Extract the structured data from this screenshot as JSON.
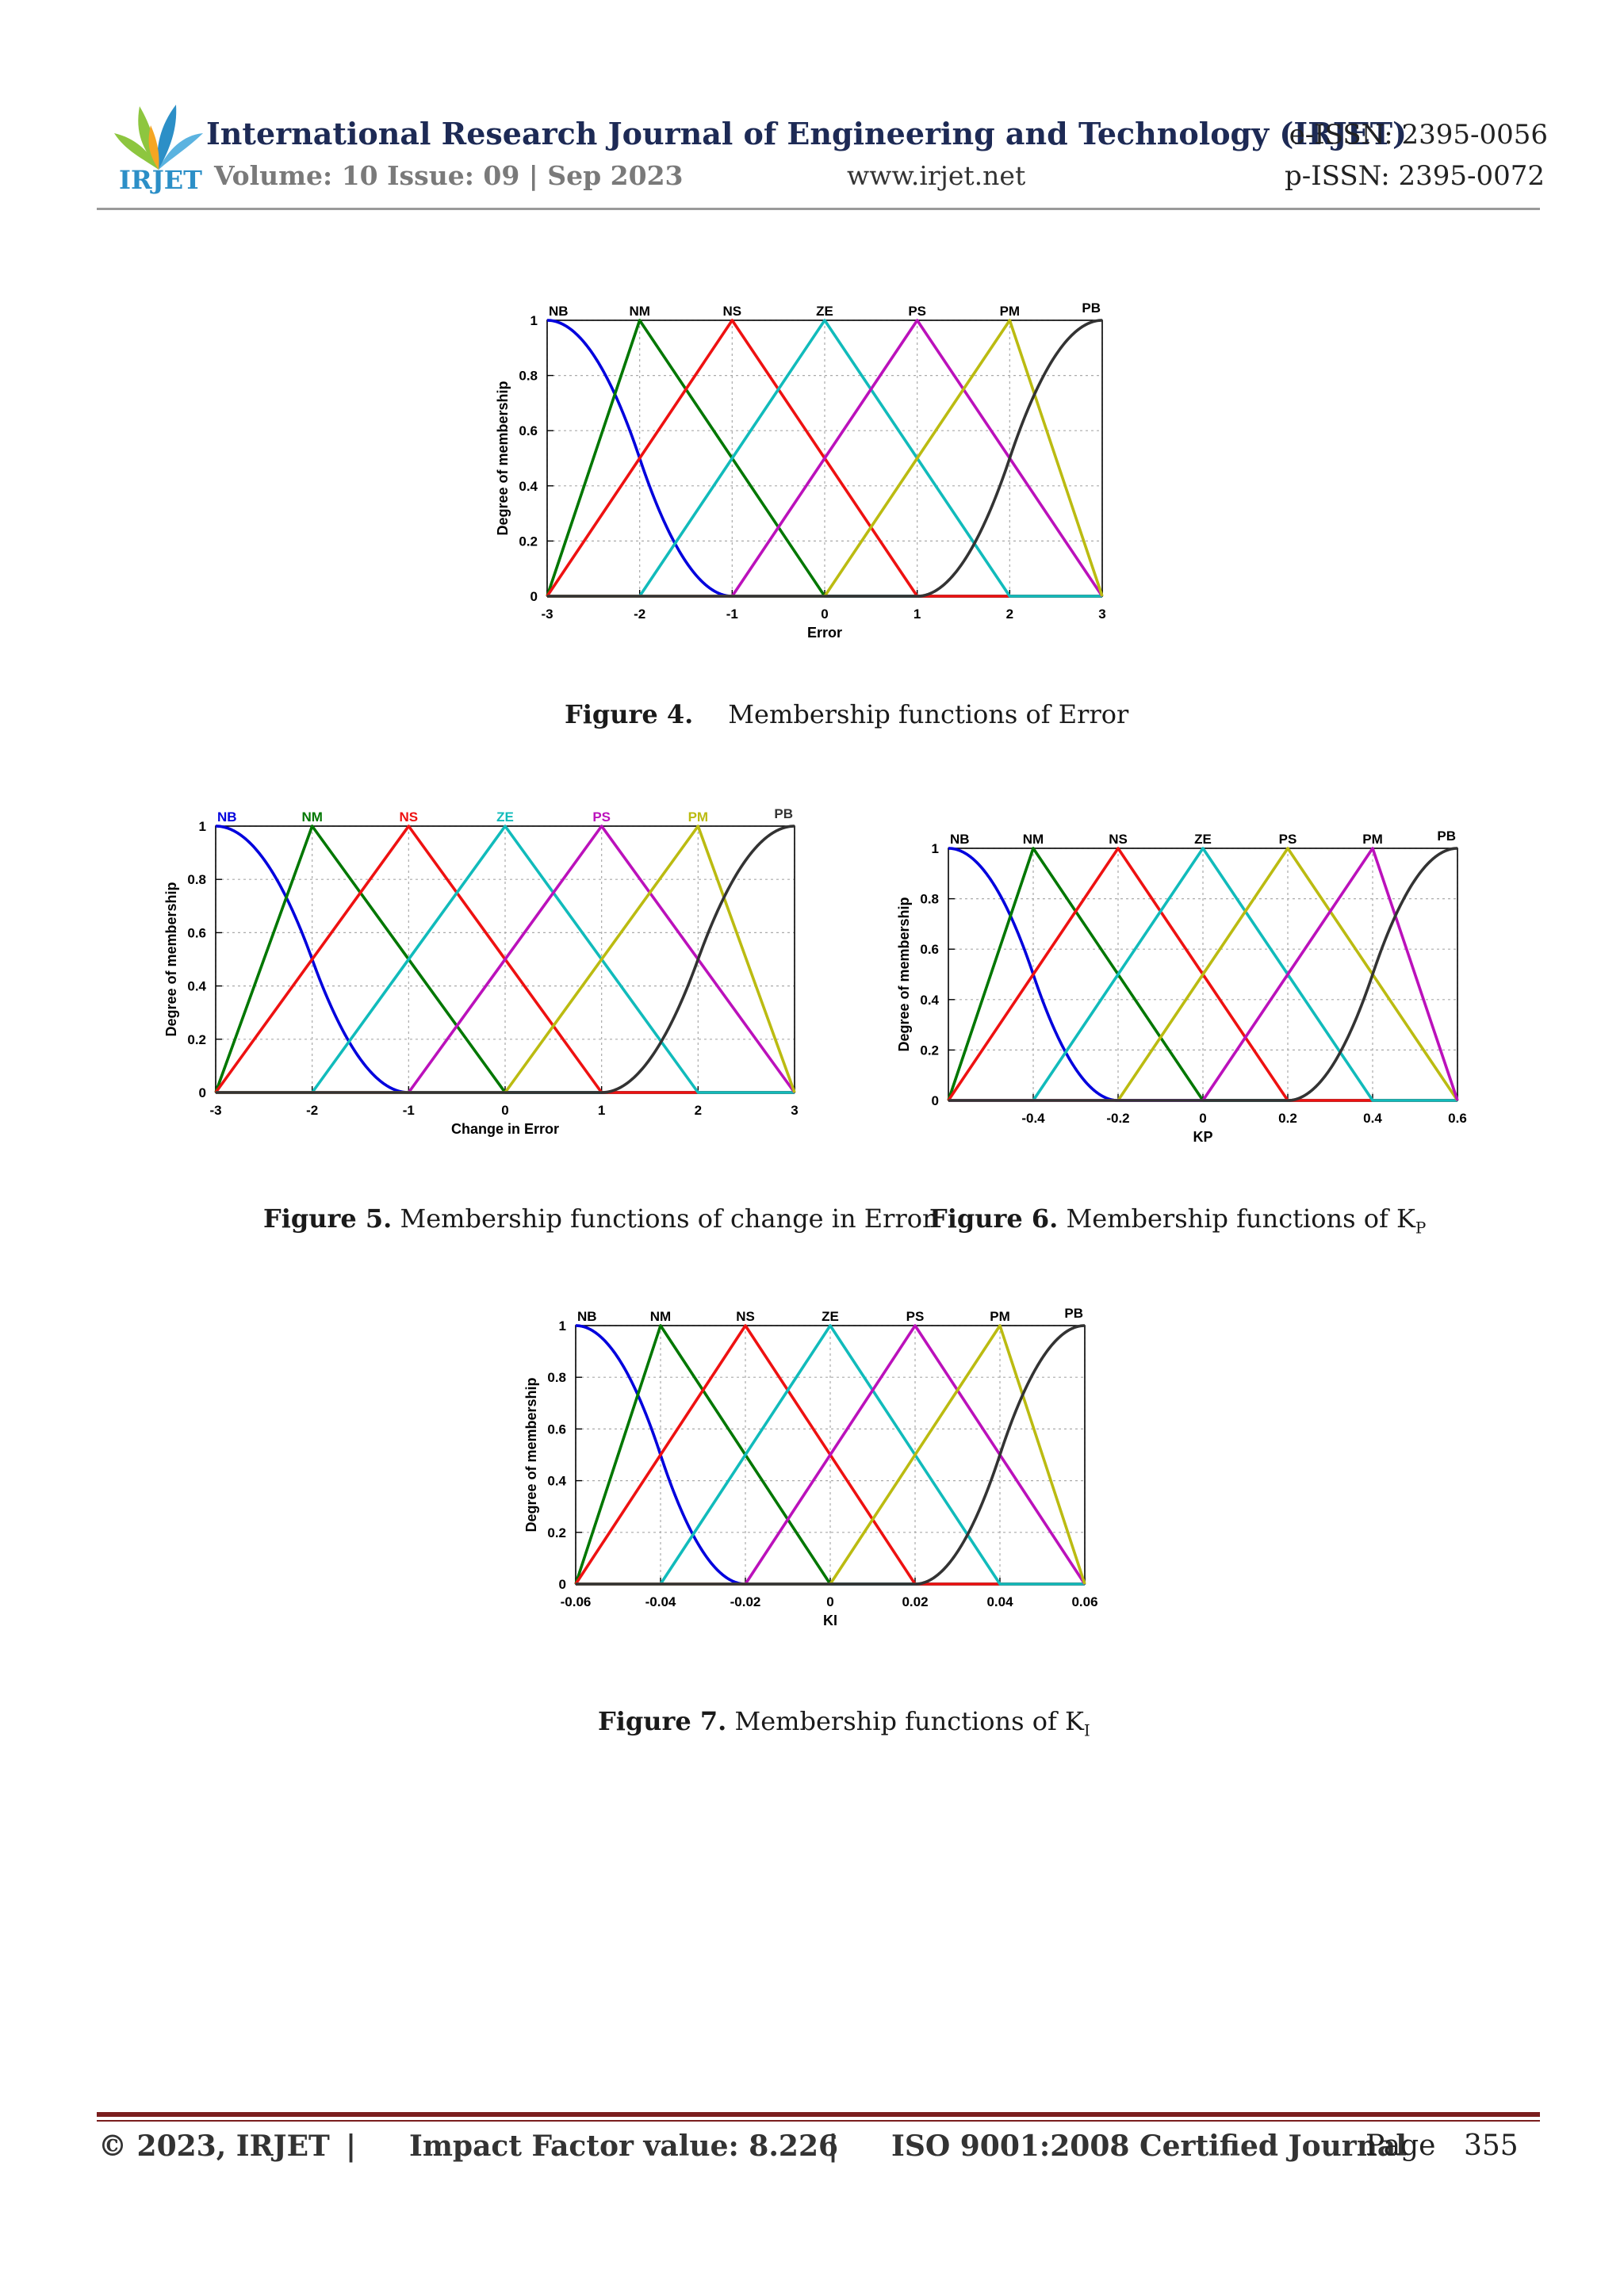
{
  "header": {
    "journal_title": "International Research Journal of Engineering and Technology (IRJET)",
    "e_issn": "e-ISSN: 2395-0056",
    "volume": "Volume: 10 Issue: 09 | Sep 2023",
    "website": "www.irjet.net",
    "p_issn": "p-ISSN: 2395-0072",
    "logo_text": "IRJET",
    "logo_colors": [
      "#8dc63f",
      "#2c8fc7",
      "#f5a623"
    ]
  },
  "captions": {
    "fig4_label": "Figure 4.",
    "fig4_text": "Membership functions of Error",
    "fig5_label": "Figure 5.",
    "fig5_text": "Membership functions of change in Error",
    "fig6_label": "Figure 6.",
    "fig6_text": "Membership functions of K",
    "fig6_sub": "P",
    "fig7_label": "Figure 7.",
    "fig7_text": "Membership functions of K",
    "fig7_sub": "I"
  },
  "footer": {
    "copyright": "© 2023, IRJET",
    "sep1": "|",
    "impact": "Impact Factor value: 8.226",
    "sep2": "|",
    "iso": "ISO 9001:2008 Certified Journal",
    "page_label": "Page",
    "page_number": "355"
  },
  "series_colors": {
    "NB": "#0000dd",
    "NM": "#007700",
    "NS": "#ee1111",
    "ZE": "#11bbbb",
    "PS": "#bb11bb",
    "PM": "#bbbb11",
    "PB": "#333333"
  },
  "chart_data": [
    {
      "id": "fig4",
      "type": "line",
      "xlabel": "Error",
      "ylabel": "Degree of membership",
      "xlim": [
        -3,
        3
      ],
      "ylim": [
        0,
        1
      ],
      "xticks": [
        -3,
        -2,
        -1,
        0,
        1,
        2,
        3
      ],
      "xtick_labels": [
        "-3",
        "-2",
        "-1",
        "0",
        "1",
        "2",
        "3"
      ],
      "yticks": [
        0,
        0.2,
        0.4,
        0.6,
        0.8,
        1
      ],
      "ytick_labels": [
        "0",
        "0.2",
        "0.4",
        "0.6",
        "0.8",
        "1"
      ],
      "grid": true,
      "colored_labels": false,
      "series": [
        {
          "name": "NB",
          "shape": "zmf",
          "params": [
            -3,
            -1
          ]
        },
        {
          "name": "NM",
          "shape": "trimf",
          "params": [
            -3,
            -2,
            0
          ]
        },
        {
          "name": "NS",
          "shape": "trimf",
          "params": [
            -3,
            -1,
            1
          ]
        },
        {
          "name": "ZE",
          "shape": "trimf",
          "params": [
            -2,
            0,
            2
          ]
        },
        {
          "name": "PS",
          "shape": "trimf",
          "params": [
            -1,
            1,
            3
          ]
        },
        {
          "name": "PM",
          "shape": "trimf",
          "params": [
            0,
            2,
            3
          ]
        },
        {
          "name": "PB",
          "shape": "smf",
          "params": [
            1,
            3
          ]
        }
      ]
    },
    {
      "id": "fig5",
      "type": "line",
      "xlabel": "Change in Error",
      "ylabel": "Degree of membership",
      "xlim": [
        -3,
        3
      ],
      "ylim": [
        0,
        1
      ],
      "xticks": [
        -3,
        -2,
        -1,
        0,
        1,
        2,
        3
      ],
      "xtick_labels": [
        "-3",
        "-2",
        "-1",
        "0",
        "1",
        "2",
        "3"
      ],
      "yticks": [
        0,
        0.2,
        0.4,
        0.6,
        0.8,
        1
      ],
      "ytick_labels": [
        "0",
        "0.2",
        "0.4",
        "0.6",
        "0.8",
        "1"
      ],
      "grid": true,
      "colored_labels": true,
      "series": [
        {
          "name": "NB",
          "shape": "zmf",
          "params": [
            -3,
            -1
          ]
        },
        {
          "name": "NM",
          "shape": "trimf",
          "params": [
            -3,
            -2,
            0
          ]
        },
        {
          "name": "NS",
          "shape": "trimf",
          "params": [
            -3,
            -1,
            1
          ]
        },
        {
          "name": "ZE",
          "shape": "trimf",
          "params": [
            -2,
            0,
            2
          ]
        },
        {
          "name": "PS",
          "shape": "trimf",
          "params": [
            -1,
            1,
            3
          ]
        },
        {
          "name": "PM",
          "shape": "trimf",
          "params": [
            0,
            2,
            3
          ]
        },
        {
          "name": "PB",
          "shape": "smf",
          "params": [
            1,
            3
          ]
        }
      ]
    },
    {
      "id": "fig6",
      "type": "line",
      "xlabel": "KP",
      "ylabel": "Degree of membership",
      "xlim": [
        -0.6,
        0.6
      ],
      "ylim": [
        0,
        1
      ],
      "xticks": [
        -0.4,
        -0.2,
        0,
        0.2,
        0.4,
        0.6
      ],
      "xtick_labels": [
        "-0.4",
        "-0.2",
        "0",
        "0.2",
        "0.4",
        "0.6"
      ],
      "yticks": [
        0,
        0.2,
        0.4,
        0.6,
        0.8,
        1
      ],
      "ytick_labels": [
        "0",
        "0.2",
        "0.4",
        "0.6",
        "0.8",
        "1"
      ],
      "grid": true,
      "colored_labels": false,
      "series": [
        {
          "name": "NB",
          "shape": "zmf",
          "params": [
            -0.6,
            -0.2
          ]
        },
        {
          "name": "NM",
          "shape": "trimf",
          "params": [
            -0.6,
            -0.4,
            0
          ]
        },
        {
          "name": "NS",
          "shape": "trimf",
          "params": [
            -0.6,
            -0.2,
            0.2
          ]
        },
        {
          "name": "ZE",
          "shape": "trimf",
          "params": [
            -0.4,
            0,
            0.4
          ]
        },
        {
          "name": "PS",
          "shape": "trimf",
          "params": [
            -0.2,
            0.2,
            0.6
          ]
        },
        {
          "name": "PM",
          "shape": "trimf",
          "params": [
            0,
            0.4,
            0.6
          ]
        },
        {
          "name": "PB",
          "shape": "smf",
          "params": [
            0.2,
            0.6
          ]
        }
      ],
      "series_colors": {
        "PS": "#bbbb11",
        "PM": "#bb11bb"
      }
    },
    {
      "id": "fig7",
      "type": "line",
      "xlabel": "KI",
      "ylabel": "Degree of membership",
      "xlim": [
        -0.06,
        0.06
      ],
      "ylim": [
        0,
        1
      ],
      "xticks": [
        -0.06,
        -0.04,
        -0.02,
        0,
        0.02,
        0.04,
        0.06
      ],
      "xtick_labels": [
        "-0.06",
        "-0.04",
        "-0.02",
        "0",
        "0.02",
        "0.04",
        "0.06"
      ],
      "yticks": [
        0,
        0.2,
        0.4,
        0.6,
        0.8,
        1
      ],
      "ytick_labels": [
        "0",
        "0.2",
        "0.4",
        "0.6",
        "0.8",
        "1"
      ],
      "grid": true,
      "colored_labels": false,
      "series": [
        {
          "name": "NB",
          "shape": "zmf",
          "params": [
            -0.06,
            -0.02
          ]
        },
        {
          "name": "NM",
          "shape": "trimf",
          "params": [
            -0.06,
            -0.04,
            0
          ]
        },
        {
          "name": "NS",
          "shape": "trimf",
          "params": [
            -0.06,
            -0.02,
            0.02
          ]
        },
        {
          "name": "ZE",
          "shape": "trimf",
          "params": [
            -0.04,
            0,
            0.04
          ]
        },
        {
          "name": "PS",
          "shape": "trimf",
          "params": [
            -0.02,
            0.02,
            0.06
          ]
        },
        {
          "name": "PM",
          "shape": "trimf",
          "params": [
            0,
            0.04,
            0.06
          ]
        },
        {
          "name": "PB",
          "shape": "smf",
          "params": [
            0.02,
            0.06
          ]
        }
      ]
    }
  ]
}
